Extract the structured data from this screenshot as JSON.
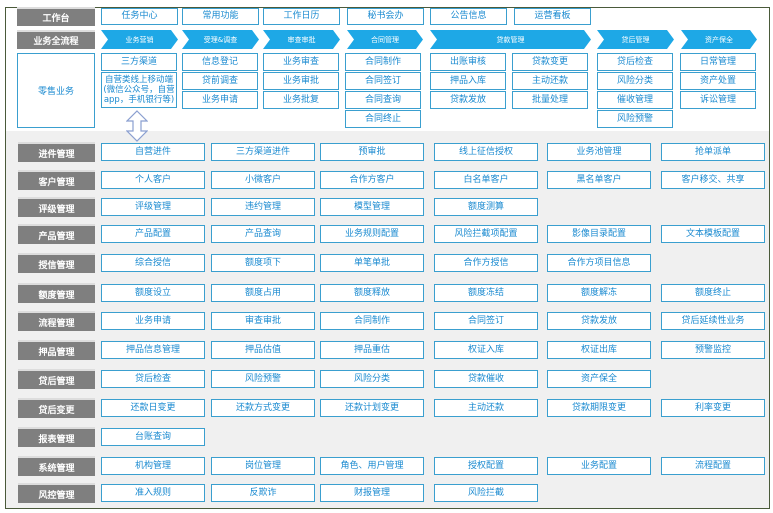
{
  "workbench": {
    "label": "工作台",
    "items": [
      "任务中心",
      "常用功能",
      "工作日历",
      "秘书会办",
      "公告信息",
      "运营看板"
    ]
  },
  "process": {
    "label": "业务全流程",
    "stages": [
      "业务营销",
      "受理&调查",
      "审查审批",
      "合同管理",
      "贷款管理",
      "贷后管理",
      "资产保全"
    ]
  },
  "retail": {
    "label": "零售业务",
    "columns": [
      [
        "三方渠道",
        "自营类线上移动端(微信公众号，自营app，手机银行等)"
      ],
      [
        "信息登记",
        "贷前调查",
        "业务申请"
      ],
      [
        "业务审查",
        "业务审批",
        "业务批复"
      ],
      [
        "合同制作",
        "合同签订",
        "合同查询",
        "合同终止"
      ],
      [
        "出账审核",
        "押品入库",
        "贷款发放"
      ],
      [
        "贷款变更",
        "主动还款",
        "批量处理"
      ],
      [
        "贷后检查",
        "风险分类",
        "催收管理",
        "风险预警"
      ],
      [
        "日常管理",
        "资产处置",
        "诉讼管理"
      ]
    ]
  },
  "modules": [
    {
      "label": "进件管理",
      "items": [
        "自营进件",
        "三方渠道进件",
        "预审批",
        "线上征信授权",
        "业务池管理",
        "抢单派单"
      ]
    },
    {
      "label": "客户管理",
      "items": [
        "个人客户",
        "小微客户",
        "合作方客户",
        "白名单客户",
        "黑名单客户",
        "客户移交、共享"
      ]
    },
    {
      "label": "评级管理",
      "items": [
        "评级管理",
        "违约管理",
        "模型管理",
        "额度测算"
      ]
    },
    {
      "label": "产品管理",
      "items": [
        "产品配置",
        "产品查询",
        "业务规则配置",
        "风险拦截项配置",
        "影像目录配置",
        "文本模板配置"
      ]
    },
    {
      "label": "授信管理",
      "items": [
        "综合授信",
        "额度项下",
        "单笔单批",
        "合作方授信",
        "合作方项目信息"
      ]
    },
    {
      "label": "额度管理",
      "items": [
        "额度设立",
        "额度占用",
        "额度释放",
        "额度冻结",
        "额度解冻",
        "额度终止"
      ]
    },
    {
      "label": "流程管理",
      "items": [
        "业务申请",
        "审查审批",
        "合同制作",
        "合同签订",
        "贷款发放",
        "贷后延续性业务"
      ]
    },
    {
      "label": "押品管理",
      "items": [
        "押品信息管理",
        "押品估值",
        "押品重估",
        "权证入库",
        "权证出库",
        "预警监控"
      ]
    },
    {
      "label": "贷后管理",
      "items": [
        "贷后检查",
        "风险预警",
        "风险分类",
        "贷款催收",
        "资产保全"
      ]
    },
    {
      "label": "贷后变更",
      "items": [
        "还款日变更",
        "还款方式变更",
        "还款计划变更",
        "主动还款",
        "贷款期限变更",
        "利率变更"
      ]
    },
    {
      "label": "报表管理",
      "items": [
        "台账查询"
      ]
    },
    {
      "label": "系统管理",
      "items": [
        "机构管理",
        "岗位管理",
        "角色、用户管理",
        "授权配置",
        "业务配置",
        "流程配置"
      ]
    },
    {
      "label": "风控管理",
      "items": [
        "准入规则",
        "反欺诈",
        "财报管理",
        "风险拦截"
      ]
    }
  ],
  "colors": {
    "accent": "#1ea8e6",
    "label_bg": "#7f7f7f",
    "border": "#3a9fcf",
    "lower_bg": "#f0f0f0"
  }
}
